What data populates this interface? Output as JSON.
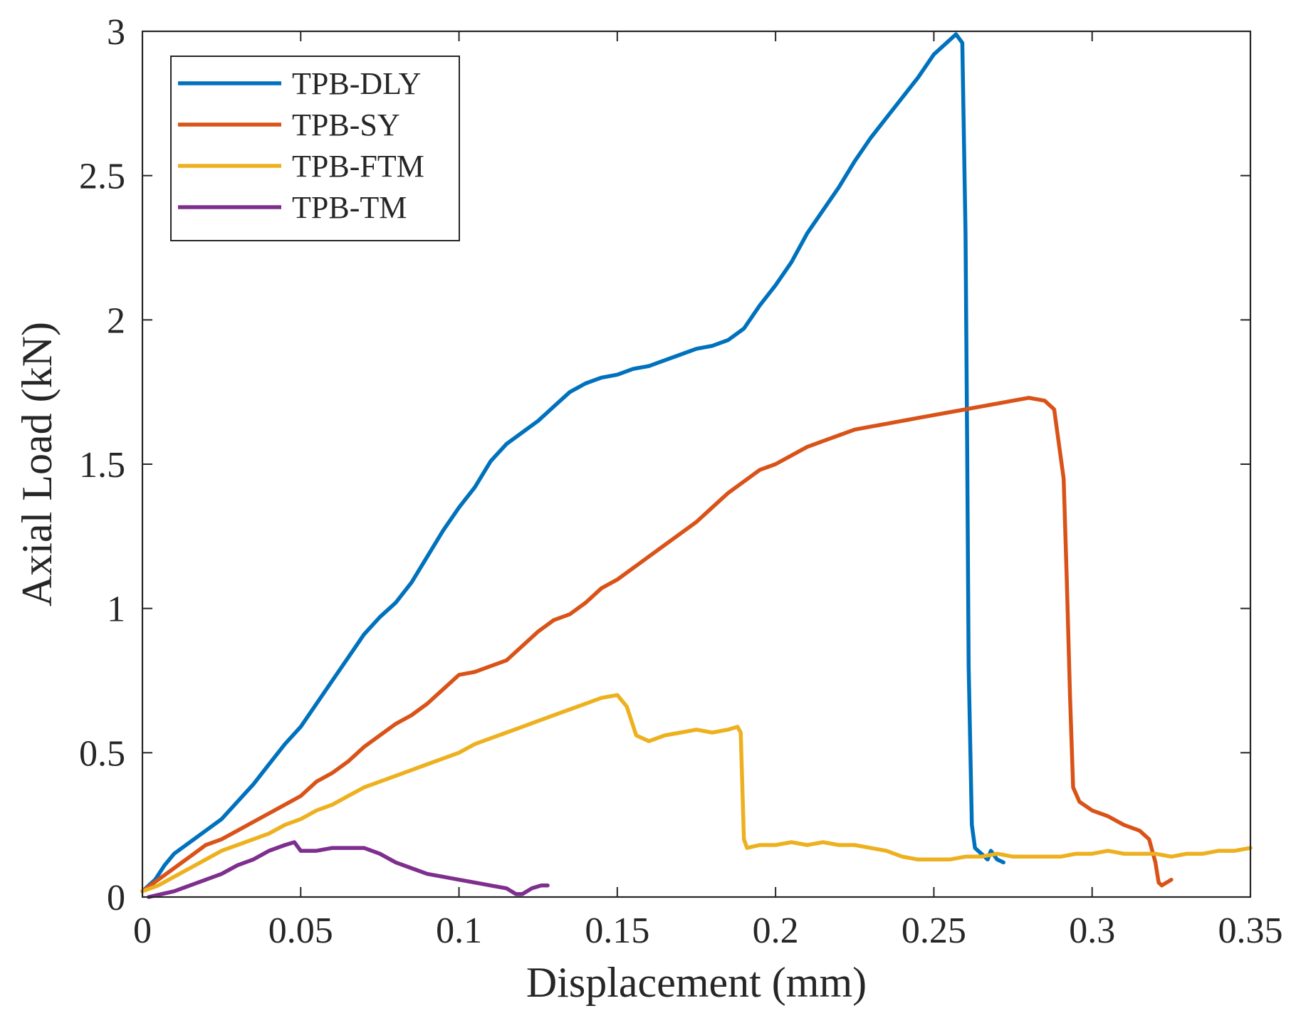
{
  "chart_data": {
    "type": "line",
    "title": "",
    "xlabel": "Displacement (mm)",
    "ylabel": "Axial Load (kN)",
    "xlim": [
      0,
      0.35
    ],
    "ylim": [
      0,
      3
    ],
    "grid": false,
    "legend_position": "top-left",
    "xticks": [
      {
        "value": 0,
        "label": "0"
      },
      {
        "value": 0.05,
        "label": "0.05"
      },
      {
        "value": 0.1,
        "label": "0.1"
      },
      {
        "value": 0.15,
        "label": "0.15"
      },
      {
        "value": 0.2,
        "label": "0.2"
      },
      {
        "value": 0.25,
        "label": "0.25"
      },
      {
        "value": 0.3,
        "label": "0.3"
      },
      {
        "value": 0.35,
        "label": "0.35"
      }
    ],
    "yticks": [
      {
        "value": 0,
        "label": "0"
      },
      {
        "value": 0.5,
        "label": "0.5"
      },
      {
        "value": 1,
        "label": "1"
      },
      {
        "value": 1.5,
        "label": "1.5"
      },
      {
        "value": 2,
        "label": "2"
      },
      {
        "value": 2.5,
        "label": "2.5"
      },
      {
        "value": 3,
        "label": "3"
      }
    ],
    "series": [
      {
        "name": "TPB-DLY",
        "color": "#0072BD",
        "points": [
          [
            0,
            0.02
          ],
          [
            0.004,
            0.06
          ],
          [
            0.007,
            0.11
          ],
          [
            0.01,
            0.15
          ],
          [
            0.015,
            0.19
          ],
          [
            0.02,
            0.23
          ],
          [
            0.025,
            0.27
          ],
          [
            0.03,
            0.33
          ],
          [
            0.035,
            0.39
          ],
          [
            0.04,
            0.46
          ],
          [
            0.045,
            0.53
          ],
          [
            0.05,
            0.59
          ],
          [
            0.055,
            0.67
          ],
          [
            0.06,
            0.75
          ],
          [
            0.065,
            0.83
          ],
          [
            0.07,
            0.91
          ],
          [
            0.075,
            0.97
          ],
          [
            0.08,
            1.02
          ],
          [
            0.085,
            1.09
          ],
          [
            0.09,
            1.18
          ],
          [
            0.095,
            1.27
          ],
          [
            0.1,
            1.35
          ],
          [
            0.105,
            1.42
          ],
          [
            0.11,
            1.51
          ],
          [
            0.115,
            1.57
          ],
          [
            0.12,
            1.61
          ],
          [
            0.125,
            1.65
          ],
          [
            0.13,
            1.7
          ],
          [
            0.135,
            1.75
          ],
          [
            0.14,
            1.78
          ],
          [
            0.145,
            1.8
          ],
          [
            0.15,
            1.81
          ],
          [
            0.155,
            1.83
          ],
          [
            0.16,
            1.84
          ],
          [
            0.165,
            1.86
          ],
          [
            0.17,
            1.88
          ],
          [
            0.175,
            1.9
          ],
          [
            0.18,
            1.91
          ],
          [
            0.185,
            1.93
          ],
          [
            0.19,
            1.97
          ],
          [
            0.195,
            2.05
          ],
          [
            0.2,
            2.12
          ],
          [
            0.205,
            2.2
          ],
          [
            0.21,
            2.3
          ],
          [
            0.215,
            2.38
          ],
          [
            0.22,
            2.46
          ],
          [
            0.225,
            2.55
          ],
          [
            0.23,
            2.63
          ],
          [
            0.235,
            2.7
          ],
          [
            0.24,
            2.77
          ],
          [
            0.245,
            2.84
          ],
          [
            0.25,
            2.92
          ],
          [
            0.255,
            2.97
          ],
          [
            0.257,
            2.99
          ],
          [
            0.259,
            2.96
          ],
          [
            0.26,
            2.3
          ],
          [
            0.2605,
            1.6
          ],
          [
            0.261,
            0.8
          ],
          [
            0.262,
            0.25
          ],
          [
            0.263,
            0.17
          ],
          [
            0.265,
            0.15
          ],
          [
            0.267,
            0.13
          ],
          [
            0.268,
            0.16
          ],
          [
            0.27,
            0.13
          ],
          [
            0.272,
            0.12
          ]
        ]
      },
      {
        "name": "TPB-SY",
        "color": "#D95319",
        "points": [
          [
            0,
            0.02
          ],
          [
            0.005,
            0.06
          ],
          [
            0.01,
            0.1
          ],
          [
            0.015,
            0.14
          ],
          [
            0.02,
            0.18
          ],
          [
            0.025,
            0.2
          ],
          [
            0.03,
            0.23
          ],
          [
            0.035,
            0.26
          ],
          [
            0.04,
            0.29
          ],
          [
            0.045,
            0.32
          ],
          [
            0.05,
            0.35
          ],
          [
            0.055,
            0.4
          ],
          [
            0.06,
            0.43
          ],
          [
            0.065,
            0.47
          ],
          [
            0.07,
            0.52
          ],
          [
            0.075,
            0.56
          ],
          [
            0.08,
            0.6
          ],
          [
            0.085,
            0.63
          ],
          [
            0.09,
            0.67
          ],
          [
            0.095,
            0.72
          ],
          [
            0.1,
            0.77
          ],
          [
            0.105,
            0.78
          ],
          [
            0.11,
            0.8
          ],
          [
            0.115,
            0.82
          ],
          [
            0.12,
            0.87
          ],
          [
            0.125,
            0.92
          ],
          [
            0.13,
            0.96
          ],
          [
            0.135,
            0.98
          ],
          [
            0.14,
            1.02
          ],
          [
            0.145,
            1.07
          ],
          [
            0.15,
            1.1
          ],
          [
            0.155,
            1.14
          ],
          [
            0.16,
            1.18
          ],
          [
            0.165,
            1.22
          ],
          [
            0.17,
            1.26
          ],
          [
            0.175,
            1.3
          ],
          [
            0.18,
            1.35
          ],
          [
            0.185,
            1.4
          ],
          [
            0.19,
            1.44
          ],
          [
            0.195,
            1.48
          ],
          [
            0.2,
            1.5
          ],
          [
            0.205,
            1.53
          ],
          [
            0.21,
            1.56
          ],
          [
            0.215,
            1.58
          ],
          [
            0.22,
            1.6
          ],
          [
            0.225,
            1.62
          ],
          [
            0.23,
            1.63
          ],
          [
            0.235,
            1.64
          ],
          [
            0.24,
            1.65
          ],
          [
            0.245,
            1.66
          ],
          [
            0.25,
            1.67
          ],
          [
            0.255,
            1.68
          ],
          [
            0.26,
            1.69
          ],
          [
            0.265,
            1.7
          ],
          [
            0.27,
            1.71
          ],
          [
            0.275,
            1.72
          ],
          [
            0.28,
            1.73
          ],
          [
            0.285,
            1.72
          ],
          [
            0.288,
            1.69
          ],
          [
            0.291,
            1.45
          ],
          [
            0.292,
            1.1
          ],
          [
            0.293,
            0.7
          ],
          [
            0.294,
            0.38
          ],
          [
            0.296,
            0.33
          ],
          [
            0.3,
            0.3
          ],
          [
            0.305,
            0.28
          ],
          [
            0.31,
            0.25
          ],
          [
            0.315,
            0.23
          ],
          [
            0.318,
            0.2
          ],
          [
            0.32,
            0.12
          ],
          [
            0.321,
            0.05
          ],
          [
            0.322,
            0.04
          ],
          [
            0.325,
            0.06
          ]
        ]
      },
      {
        "name": "TPB-FTM",
        "color": "#EDB120",
        "points": [
          [
            0,
            0.02
          ],
          [
            0.005,
            0.04
          ],
          [
            0.01,
            0.07
          ],
          [
            0.015,
            0.1
          ],
          [
            0.02,
            0.13
          ],
          [
            0.025,
            0.16
          ],
          [
            0.03,
            0.18
          ],
          [
            0.035,
            0.2
          ],
          [
            0.04,
            0.22
          ],
          [
            0.045,
            0.25
          ],
          [
            0.05,
            0.27
          ],
          [
            0.055,
            0.3
          ],
          [
            0.06,
            0.32
          ],
          [
            0.065,
            0.35
          ],
          [
            0.07,
            0.38
          ],
          [
            0.075,
            0.4
          ],
          [
            0.08,
            0.42
          ],
          [
            0.085,
            0.44
          ],
          [
            0.09,
            0.46
          ],
          [
            0.095,
            0.48
          ],
          [
            0.1,
            0.5
          ],
          [
            0.105,
            0.53
          ],
          [
            0.11,
            0.55
          ],
          [
            0.115,
            0.57
          ],
          [
            0.12,
            0.59
          ],
          [
            0.125,
            0.61
          ],
          [
            0.13,
            0.63
          ],
          [
            0.135,
            0.65
          ],
          [
            0.14,
            0.67
          ],
          [
            0.145,
            0.69
          ],
          [
            0.15,
            0.7
          ],
          [
            0.153,
            0.66
          ],
          [
            0.156,
            0.56
          ],
          [
            0.16,
            0.54
          ],
          [
            0.165,
            0.56
          ],
          [
            0.17,
            0.57
          ],
          [
            0.175,
            0.58
          ],
          [
            0.18,
            0.57
          ],
          [
            0.185,
            0.58
          ],
          [
            0.188,
            0.59
          ],
          [
            0.189,
            0.57
          ],
          [
            0.19,
            0.2
          ],
          [
            0.191,
            0.17
          ],
          [
            0.195,
            0.18
          ],
          [
            0.2,
            0.18
          ],
          [
            0.205,
            0.19
          ],
          [
            0.21,
            0.18
          ],
          [
            0.215,
            0.19
          ],
          [
            0.22,
            0.18
          ],
          [
            0.225,
            0.18
          ],
          [
            0.23,
            0.17
          ],
          [
            0.235,
            0.16
          ],
          [
            0.24,
            0.14
          ],
          [
            0.245,
            0.13
          ],
          [
            0.25,
            0.13
          ],
          [
            0.255,
            0.13
          ],
          [
            0.26,
            0.14
          ],
          [
            0.265,
            0.14
          ],
          [
            0.27,
            0.15
          ],
          [
            0.275,
            0.14
          ],
          [
            0.28,
            0.14
          ],
          [
            0.285,
            0.14
          ],
          [
            0.29,
            0.14
          ],
          [
            0.295,
            0.15
          ],
          [
            0.3,
            0.15
          ],
          [
            0.305,
            0.16
          ],
          [
            0.31,
            0.15
          ],
          [
            0.315,
            0.15
          ],
          [
            0.32,
            0.15
          ],
          [
            0.325,
            0.14
          ],
          [
            0.33,
            0.15
          ],
          [
            0.335,
            0.15
          ],
          [
            0.34,
            0.16
          ],
          [
            0.345,
            0.16
          ],
          [
            0.35,
            0.17
          ]
        ]
      },
      {
        "name": "TPB-TM",
        "color": "#7E2F8E",
        "points": [
          [
            0.002,
            0.0
          ],
          [
            0.006,
            0.01
          ],
          [
            0.01,
            0.02
          ],
          [
            0.015,
            0.04
          ],
          [
            0.02,
            0.06
          ],
          [
            0.025,
            0.08
          ],
          [
            0.03,
            0.11
          ],
          [
            0.035,
            0.13
          ],
          [
            0.04,
            0.16
          ],
          [
            0.045,
            0.18
          ],
          [
            0.048,
            0.19
          ],
          [
            0.05,
            0.16
          ],
          [
            0.055,
            0.16
          ],
          [
            0.06,
            0.17
          ],
          [
            0.065,
            0.17
          ],
          [
            0.07,
            0.17
          ],
          [
            0.075,
            0.15
          ],
          [
            0.08,
            0.12
          ],
          [
            0.085,
            0.1
          ],
          [
            0.09,
            0.08
          ],
          [
            0.095,
            0.07
          ],
          [
            0.1,
            0.06
          ],
          [
            0.105,
            0.05
          ],
          [
            0.11,
            0.04
          ],
          [
            0.115,
            0.03
          ],
          [
            0.118,
            0.01
          ],
          [
            0.12,
            0.01
          ],
          [
            0.123,
            0.03
          ],
          [
            0.126,
            0.04
          ],
          [
            0.128,
            0.04
          ]
        ]
      }
    ]
  }
}
